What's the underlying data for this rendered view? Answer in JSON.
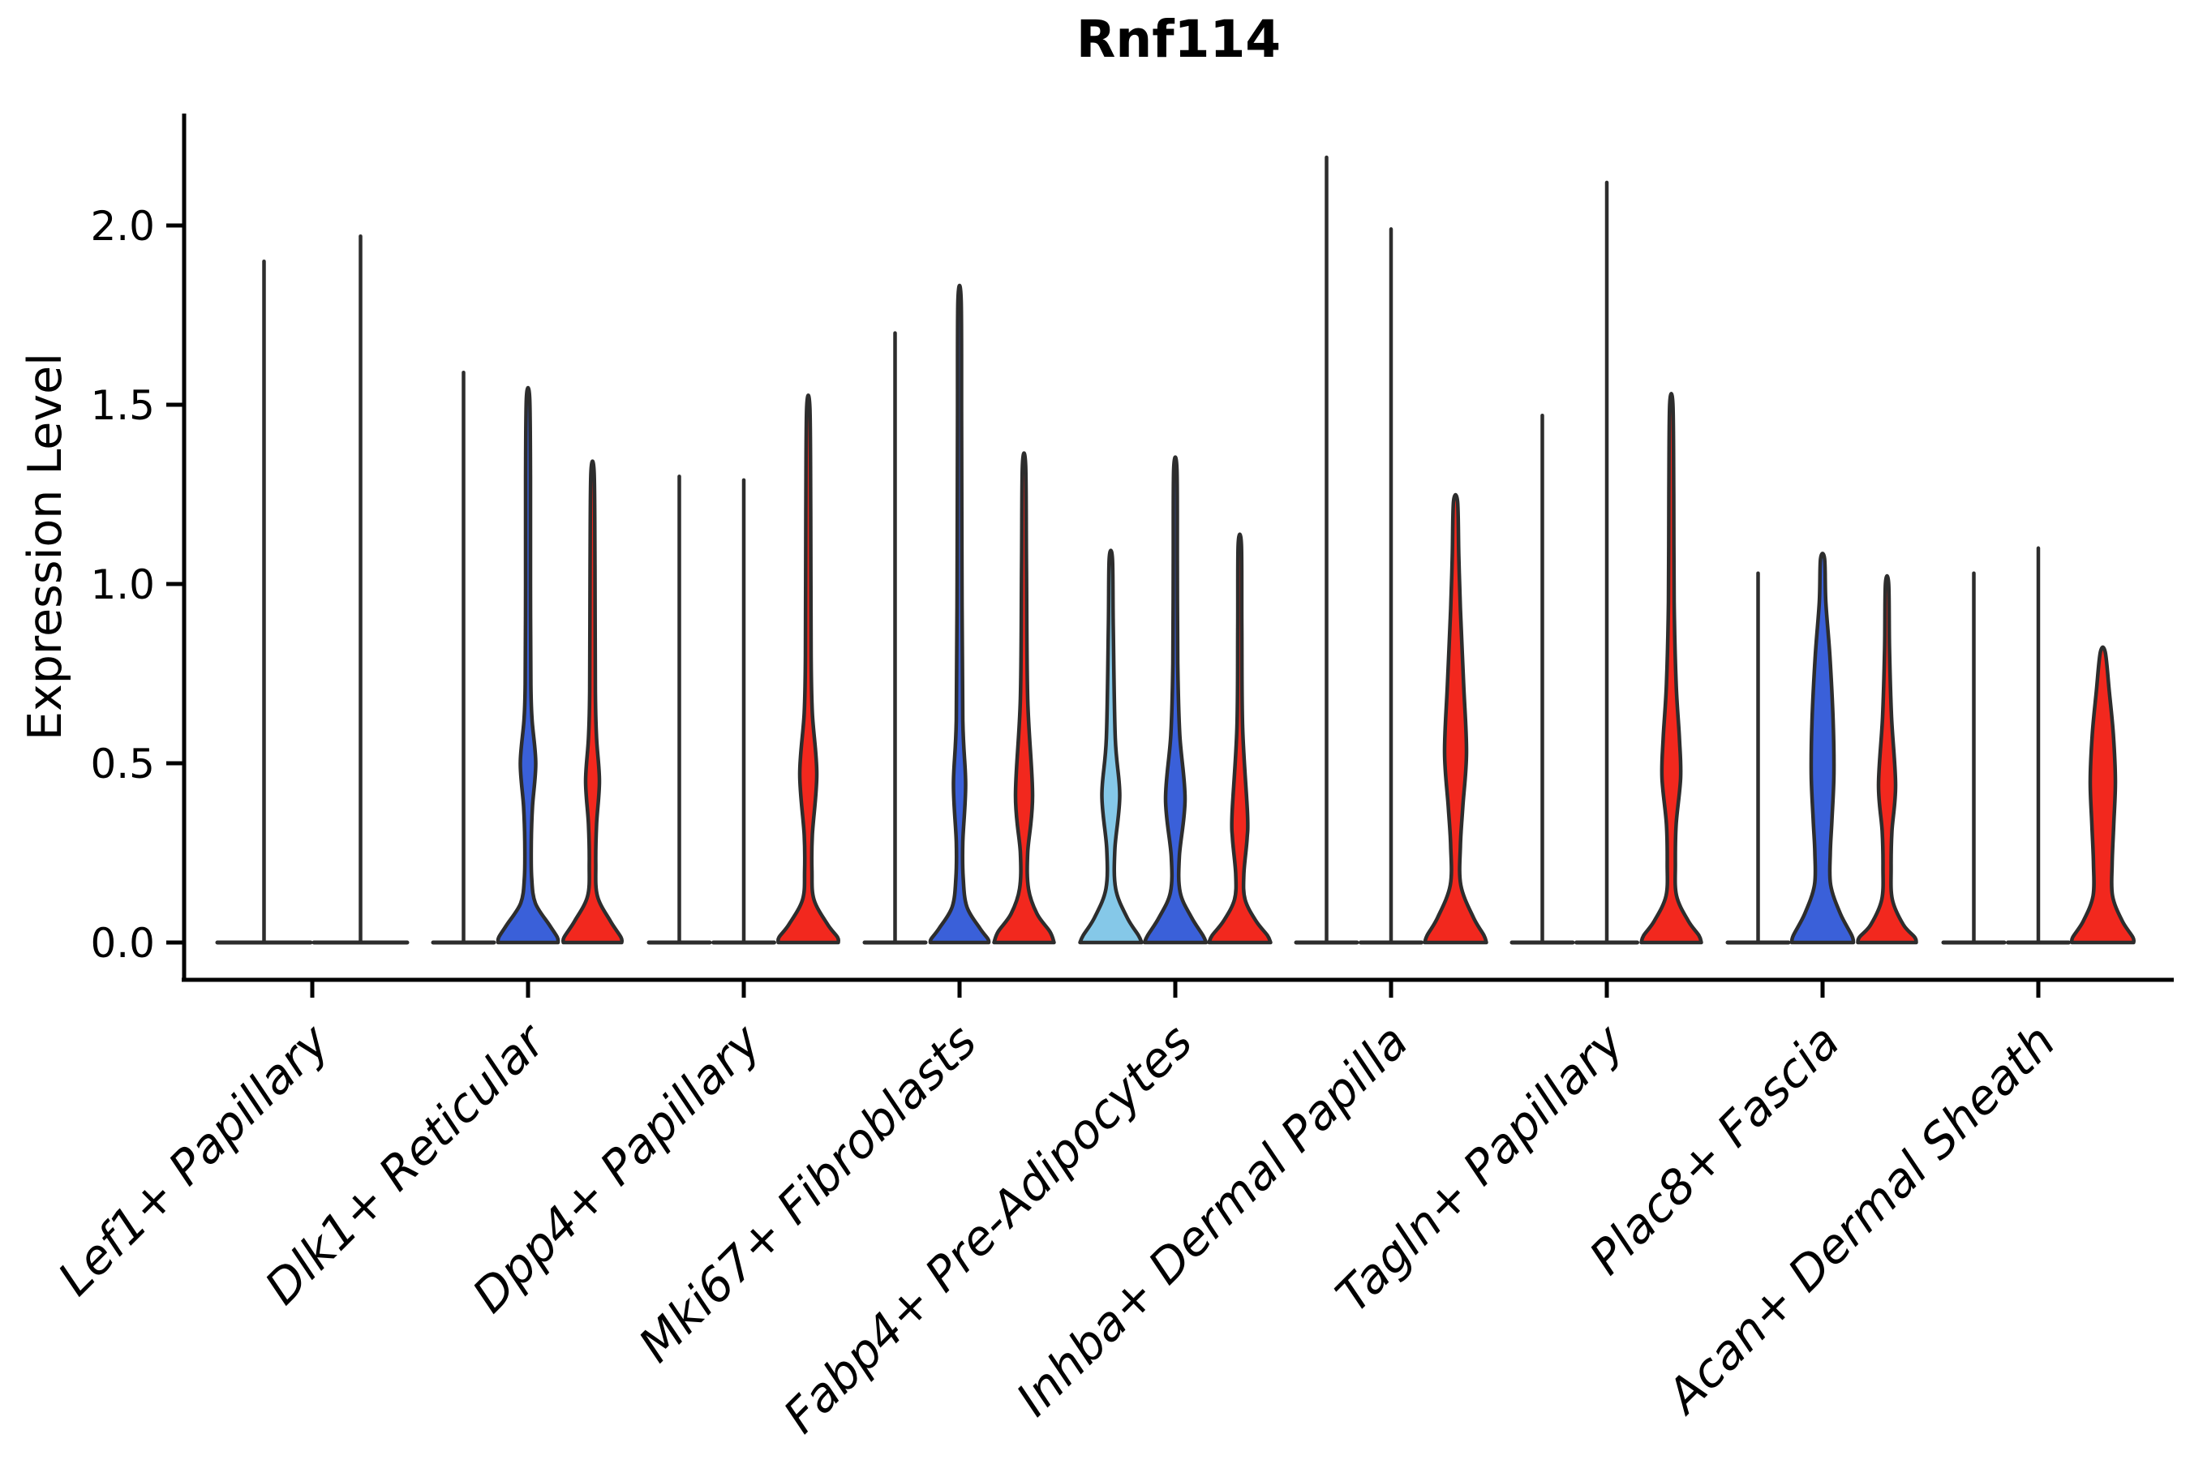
{
  "chart_data": {
    "type": "violin",
    "title": "Rnf114",
    "ylabel": "Expression Level",
    "xlabel": "",
    "ylim": [
      -0.1,
      2.31
    ],
    "grid": false,
    "legend": "none",
    "y_ticks": [
      {
        "value": 0.0,
        "label": "0.0"
      },
      {
        "value": 0.5,
        "label": "0.5"
      },
      {
        "value": 1.0,
        "label": "1.0"
      },
      {
        "value": 1.5,
        "label": "1.5"
      },
      {
        "value": 2.0,
        "label": "2.0"
      }
    ],
    "categories": [
      "Lef1+ Papillary",
      "Dlk1+ Reticular",
      "Dpp4+ Papillary",
      "Mki67+ Fibroblasts",
      "Fabp4+ Pre-Adipocytes",
      "Inhba+ Dermal Papilla",
      "Tagln+ Papillary",
      "Plac8+ Fascia",
      "Acan+ Dermal Sheath"
    ],
    "palette": {
      "light_blue": "#85C8E8",
      "blue": "#3A60D9",
      "red": "#F2281E",
      "outline": "#2D2D2D",
      "axis": "#000000"
    },
    "groups": [
      {
        "category": "Lef1+ Papillary",
        "violins": [
          {
            "shape": "collapsed",
            "color": null,
            "max": 1.9
          },
          {
            "shape": "collapsed",
            "color": null,
            "max": 1.97
          }
        ]
      },
      {
        "category": "Dlk1+ Reticular",
        "violins": [
          {
            "shape": "collapsed",
            "color": null,
            "max": 1.59
          },
          {
            "shape": "filled",
            "color": "blue",
            "max": 1.52,
            "profile": [
              [
                1.52,
                2
              ],
              [
                1.3,
                3
              ],
              [
                1.0,
                3
              ],
              [
                0.72,
                3.5
              ],
              [
                0.62,
                5
              ],
              [
                0.5,
                9.5
              ],
              [
                0.38,
                5.5
              ],
              [
                0.28,
                4
              ],
              [
                0.18,
                4.5
              ],
              [
                0.11,
                9
              ],
              [
                0.05,
                26
              ],
              [
                0.015,
                36
              ],
              [
                0,
                37
              ]
            ]
          },
          {
            "shape": "filled",
            "color": "red",
            "max": 1.31,
            "profile": [
              [
                1.31,
                2
              ],
              [
                1.05,
                3
              ],
              [
                0.7,
                3.5
              ],
              [
                0.57,
                5
              ],
              [
                0.45,
                8.5
              ],
              [
                0.33,
                5
              ],
              [
                0.22,
                4
              ],
              [
                0.13,
                6
              ],
              [
                0.06,
                22
              ],
              [
                0.015,
                35
              ],
              [
                0,
                36
              ]
            ]
          }
        ]
      },
      {
        "category": "Dpp4+ Papillary",
        "violins": [
          {
            "shape": "collapsed",
            "color": null,
            "max": 1.3
          },
          {
            "shape": "collapsed",
            "color": null,
            "max": 1.29
          },
          {
            "shape": "filled",
            "color": "red",
            "max": 1.49,
            "profile": [
              [
                1.49,
                2
              ],
              [
                1.2,
                3
              ],
              [
                0.8,
                3.5
              ],
              [
                0.64,
                5
              ],
              [
                0.47,
                10.5
              ],
              [
                0.3,
                5
              ],
              [
                0.2,
                4.5
              ],
              [
                0.12,
                7
              ],
              [
                0.05,
                24
              ],
              [
                0.015,
                36
              ],
              [
                0,
                37
              ]
            ]
          }
        ]
      },
      {
        "category": "Mki67+ Fibroblasts",
        "violins": [
          {
            "shape": "collapsed",
            "color": null,
            "max": 1.7
          },
          {
            "shape": "filled",
            "color": "blue",
            "max": 1.79,
            "profile": [
              [
                1.79,
                2
              ],
              [
                1.45,
                2.5
              ],
              [
                1.0,
                3
              ],
              [
                0.62,
                4
              ],
              [
                0.44,
                7.5
              ],
              [
                0.28,
                4
              ],
              [
                0.18,
                4.5
              ],
              [
                0.1,
                9
              ],
              [
                0.04,
                25
              ],
              [
                0.01,
                35
              ],
              [
                0,
                36
              ]
            ]
          },
          {
            "shape": "filled",
            "color": "red",
            "max": 1.33,
            "profile": [
              [
                1.33,
                2
              ],
              [
                1.05,
                3
              ],
              [
                0.68,
                4.5
              ],
              [
                0.41,
                10.5
              ],
              [
                0.25,
                4.5
              ],
              [
                0.15,
                5.5
              ],
              [
                0.08,
                16
              ],
              [
                0.03,
                32
              ],
              [
                0,
                37
              ]
            ]
          }
        ]
      },
      {
        "category": "Fabp4+ Pre-Adipocytes",
        "violins": [
          {
            "shape": "filled",
            "color": "light_blue",
            "max": 1.07,
            "profile": [
              [
                1.07,
                2
              ],
              [
                0.88,
                3
              ],
              [
                0.57,
                5.5
              ],
              [
                0.41,
                11
              ],
              [
                0.26,
                5
              ],
              [
                0.15,
                6
              ],
              [
                0.07,
                20
              ],
              [
                0.02,
                34
              ],
              [
                0,
                38
              ]
            ]
          },
          {
            "shape": "filled",
            "color": "blue",
            "max": 1.32,
            "profile": [
              [
                1.32,
                2
              ],
              [
                1.05,
                2.5
              ],
              [
                0.78,
                3
              ],
              [
                0.58,
                5.5
              ],
              [
                0.4,
                12
              ],
              [
                0.24,
                5
              ],
              [
                0.14,
                6
              ],
              [
                0.07,
                20
              ],
              [
                0.02,
                34
              ],
              [
                0,
                38
              ]
            ]
          },
          {
            "shape": "filled",
            "color": "red",
            "max": 1.11,
            "profile": [
              [
                1.11,
                2
              ],
              [
                0.88,
                2.5
              ],
              [
                0.6,
                3.5
              ],
              [
                0.36,
                9.5
              ],
              [
                0.29,
                9
              ],
              [
                0.19,
                5
              ],
              [
                0.12,
                6.5
              ],
              [
                0.06,
                20
              ],
              [
                0.02,
                34
              ],
              [
                0,
                38
              ]
            ]
          }
        ]
      },
      {
        "category": "Inhba+ Dermal Papilla",
        "violins": [
          {
            "shape": "collapsed",
            "color": null,
            "max": 2.19
          },
          {
            "shape": "collapsed",
            "color": null,
            "max": 1.99
          },
          {
            "shape": "filled",
            "color": "red",
            "max": 1.23,
            "profile": [
              [
                1.23,
                2.5
              ],
              [
                1.08,
                4
              ],
              [
                0.93,
                6
              ],
              [
                0.72,
                10
              ],
              [
                0.53,
                13.5
              ],
              [
                0.38,
                9
              ],
              [
                0.27,
                6
              ],
              [
                0.16,
                6.5
              ],
              [
                0.07,
                22
              ],
              [
                0.02,
                35
              ],
              [
                0,
                38
              ]
            ]
          }
        ]
      },
      {
        "category": "Tagln+ Papillary",
        "violins": [
          {
            "shape": "collapsed",
            "color": null,
            "max": 1.47
          },
          {
            "shape": "collapsed",
            "color": null,
            "max": 2.12
          },
          {
            "shape": "filled",
            "color": "red",
            "max": 1.5,
            "profile": [
              [
                1.5,
                2
              ],
              [
                1.25,
                3
              ],
              [
                0.95,
                3.5
              ],
              [
                0.72,
                6
              ],
              [
                0.57,
                10
              ],
              [
                0.46,
                11.5
              ],
              [
                0.33,
                6
              ],
              [
                0.22,
                5
              ],
              [
                0.13,
                6.5
              ],
              [
                0.06,
                21
              ],
              [
                0.02,
                34
              ],
              [
                0,
                37
              ]
            ]
          }
        ]
      },
      {
        "category": "Plac8+ Fascia",
        "violins": [
          {
            "shape": "collapsed",
            "color": null,
            "max": 1.03
          },
          {
            "shape": "filled",
            "color": "blue",
            "max": 1.07,
            "profile": [
              [
                1.07,
                2.5
              ],
              [
                0.95,
                4
              ],
              [
                0.8,
                9
              ],
              [
                0.62,
                13
              ],
              [
                0.47,
                14
              ],
              [
                0.34,
                11.5
              ],
              [
                0.25,
                9.5
              ],
              [
                0.16,
                10
              ],
              [
                0.08,
                22
              ],
              [
                0.02,
                36
              ],
              [
                0,
                38
              ]
            ]
          },
          {
            "shape": "filled",
            "color": "red",
            "max": 1.0,
            "profile": [
              [
                1.0,
                2
              ],
              [
                0.82,
                3
              ],
              [
                0.63,
                5.5
              ],
              [
                0.44,
                10.5
              ],
              [
                0.31,
                6
              ],
              [
                0.21,
                5
              ],
              [
                0.12,
                6.5
              ],
              [
                0.05,
                20
              ],
              [
                0.015,
                34
              ],
              [
                0,
                36
              ]
            ]
          }
        ]
      },
      {
        "category": "Acan+ Dermal Sheath",
        "violins": [
          {
            "shape": "collapsed",
            "color": null,
            "max": 1.03
          },
          {
            "shape": "collapsed",
            "color": null,
            "max": 1.1
          },
          {
            "shape": "filled",
            "color": "red",
            "max": 0.81,
            "profile": [
              [
                0.81,
                3
              ],
              [
                0.7,
                8
              ],
              [
                0.58,
                13
              ],
              [
                0.45,
                15.5
              ],
              [
                0.33,
                13.5
              ],
              [
                0.22,
                11.5
              ],
              [
                0.13,
                12
              ],
              [
                0.06,
                24
              ],
              [
                0.015,
                37
              ],
              [
                0,
                38
              ]
            ]
          }
        ]
      }
    ]
  }
}
